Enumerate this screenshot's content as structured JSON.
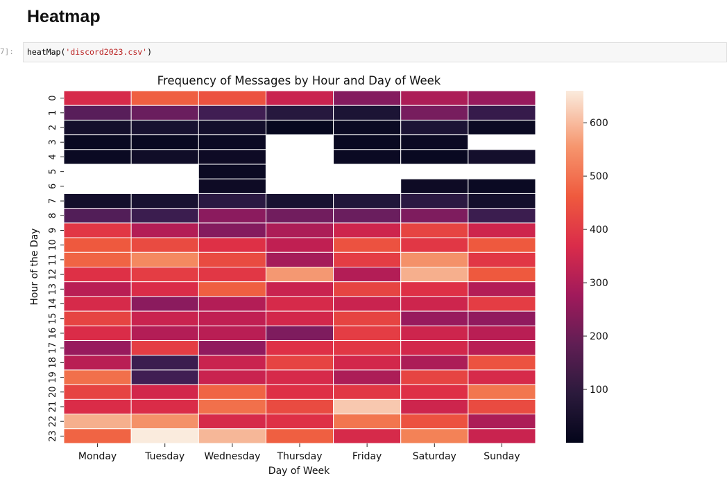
{
  "notebook": {
    "heading": "Heatmap",
    "prompt": "7]:",
    "code_func": "heatMap(",
    "code_arg": "'discord2023.csv'",
    "code_close": ")"
  },
  "chart_data": {
    "type": "heatmap",
    "title": "Frequency of Messages by Hour and Day of Week",
    "xlabel": "Day of Week",
    "ylabel": "Hour of the Day",
    "x": [
      "Monday",
      "Tuesday",
      "Wednesday",
      "Thursday",
      "Friday",
      "Saturday",
      "Sunday"
    ],
    "y": [
      "0",
      "1",
      "2",
      "3",
      "4",
      "5",
      "6",
      "7",
      "8",
      "9",
      "10",
      "11",
      "12",
      "13",
      "14",
      "15",
      "16",
      "17",
      "18",
      "19",
      "20",
      "21",
      "22",
      "23"
    ],
    "values": [
      [
        380,
        470,
        450,
        350,
        240,
        300,
        270
      ],
      [
        170,
        200,
        130,
        80,
        60,
        220,
        110
      ],
      [
        40,
        50,
        40,
        10,
        20,
        60,
        20
      ],
      [
        15,
        15,
        20,
        null,
        15,
        20,
        null
      ],
      [
        20,
        30,
        25,
        null,
        20,
        15,
        40
      ],
      [
        null,
        null,
        20,
        null,
        null,
        null,
        null
      ],
      [
        null,
        null,
        25,
        null,
        null,
        25,
        20
      ],
      [
        40,
        50,
        90,
        50,
        70,
        90,
        40
      ],
      [
        160,
        120,
        250,
        210,
        200,
        230,
        120
      ],
      [
        410,
        310,
        240,
        300,
        360,
        430,
        360
      ],
      [
        460,
        440,
        400,
        330,
        450,
        410,
        460
      ],
      [
        480,
        540,
        440,
        290,
        420,
        550,
        410
      ],
      [
        400,
        420,
        410,
        560,
        310,
        590,
        460
      ],
      [
        320,
        390,
        470,
        350,
        430,
        400,
        310
      ],
      [
        380,
        250,
        310,
        380,
        350,
        360,
        420
      ],
      [
        430,
        350,
        330,
        370,
        430,
        270,
        260
      ],
      [
        390,
        310,
        320,
        230,
        420,
        360,
        320
      ],
      [
        270,
        420,
        260,
        400,
        410,
        370,
        320
      ],
      [
        320,
        120,
        350,
        430,
        370,
        300,
        450
      ],
      [
        500,
        130,
        350,
        380,
        300,
        430,
        380
      ],
      [
        430,
        370,
        480,
        400,
        410,
        400,
        510
      ],
      [
        390,
        390,
        500,
        440,
        620,
        360,
        440
      ],
      [
        590,
        550,
        380,
        400,
        510,
        450,
        300
      ],
      [
        480,
        660,
        600,
        470,
        380,
        530,
        350
      ]
    ],
    "colorbar": {
      "range": [
        0,
        660
      ],
      "ticks": [
        100,
        200,
        300,
        400,
        500,
        600
      ]
    },
    "colormap": "rocket",
    "missing_color": "#ffffff",
    "gridline_color": "#ffffff"
  }
}
